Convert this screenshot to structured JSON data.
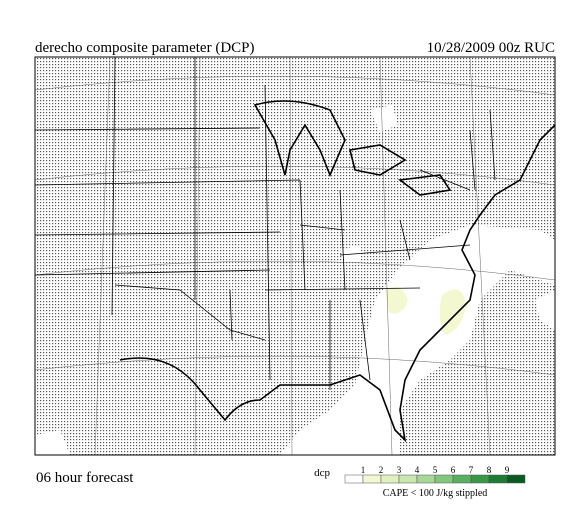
{
  "header": {
    "title": "derecho composite parameter (DCP)",
    "valid": "10/28/2009  00z  RUC"
  },
  "footer": {
    "forecast": "06 hour forecast"
  },
  "legend": {
    "label": "dcp",
    "ticks": [
      1,
      2,
      3,
      4,
      5,
      6,
      7,
      8,
      9
    ],
    "colors": [
      "#ffffff",
      "#f4f8d0",
      "#e0f0c0",
      "#c8e6b0",
      "#a8d898",
      "#80c880",
      "#58b060",
      "#389848",
      "#1c7c34",
      "#0a5a22"
    ],
    "note": "CAPE < 100 J/kg stippled"
  }
}
